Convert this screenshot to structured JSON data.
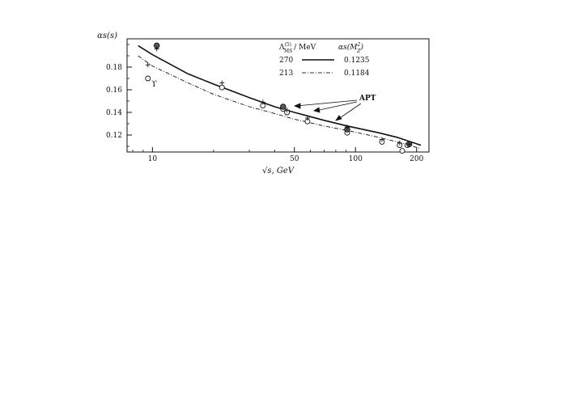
{
  "chart_data": {
    "type": "line",
    "xscale": "log",
    "xlim": [
      7.5,
      230
    ],
    "ylim": [
      0.105,
      0.205
    ],
    "ylabel": "αs(s)",
    "xlabel": "√s, GeV",
    "xticks": [
      10,
      50,
      100,
      200
    ],
    "yticks": [
      0.12,
      0.14,
      0.16,
      0.18
    ],
    "ytick_labels": [
      "0.12",
      "0.14",
      "0.16",
      "0.18"
    ],
    "xtick_labels": [
      "10",
      "50",
      "100",
      "200"
    ],
    "legend": {
      "placement": "top-right",
      "header_lambda": "Λ",
      "header_lambda_sup": "(5)",
      "header_lambda_sub": "MS",
      "header_lambda_unit": "/ MeV",
      "header_alpha": "αs(M",
      "header_alpha_sup": "2",
      "header_alpha_sub": "Z",
      "header_alpha_close": ")",
      "entries": [
        {
          "lambda": "270",
          "alpha": "0.1235",
          "style": "solid"
        },
        {
          "lambda": "213",
          "alpha": "0.1184",
          "style": "dashdot"
        }
      ]
    },
    "annotations": [
      {
        "text": "APT"
      },
      {
        "text": "ϒ"
      }
    ],
    "series": [
      {
        "style": "solid",
        "x": [
          8.5,
          10,
          15,
          20,
          30,
          40,
          50,
          70,
          91,
          130,
          160,
          210
        ],
        "y": [
          0.199,
          0.191,
          0.174,
          0.165,
          0.153,
          0.145,
          0.14,
          0.133,
          0.128,
          0.122,
          0.118,
          0.111
        ]
      },
      {
        "style": "dashdot",
        "x": [
          8.5,
          10,
          15,
          20,
          30,
          40,
          50,
          70,
          91,
          130,
          160,
          210
        ],
        "y": [
          0.19,
          0.181,
          0.166,
          0.156,
          0.145,
          0.139,
          0.134,
          0.128,
          0.124,
          0.118,
          0.114,
          0.108
        ]
      }
    ],
    "points_open": {
      "x": [
        9.5,
        22,
        35,
        44,
        46,
        58,
        91,
        135,
        165,
        170,
        180
      ],
      "y": [
        0.17,
        0.162,
        0.146,
        0.143,
        0.14,
        0.132,
        0.122,
        0.114,
        0.111,
        0.106,
        0.111
      ]
    },
    "points_filled": {
      "x": [
        10.5,
        44,
        91,
        184
      ],
      "y": [
        0.199,
        0.145,
        0.125,
        0.112
      ]
    },
    "points_plus": {
      "x": [
        9.5,
        10.5,
        22,
        35,
        46,
        58,
        91,
        135,
        165,
        184
      ],
      "y": [
        0.182,
        0.196,
        0.166,
        0.149,
        0.142,
        0.135,
        0.127,
        0.116,
        0.113,
        0.112
      ]
    }
  }
}
